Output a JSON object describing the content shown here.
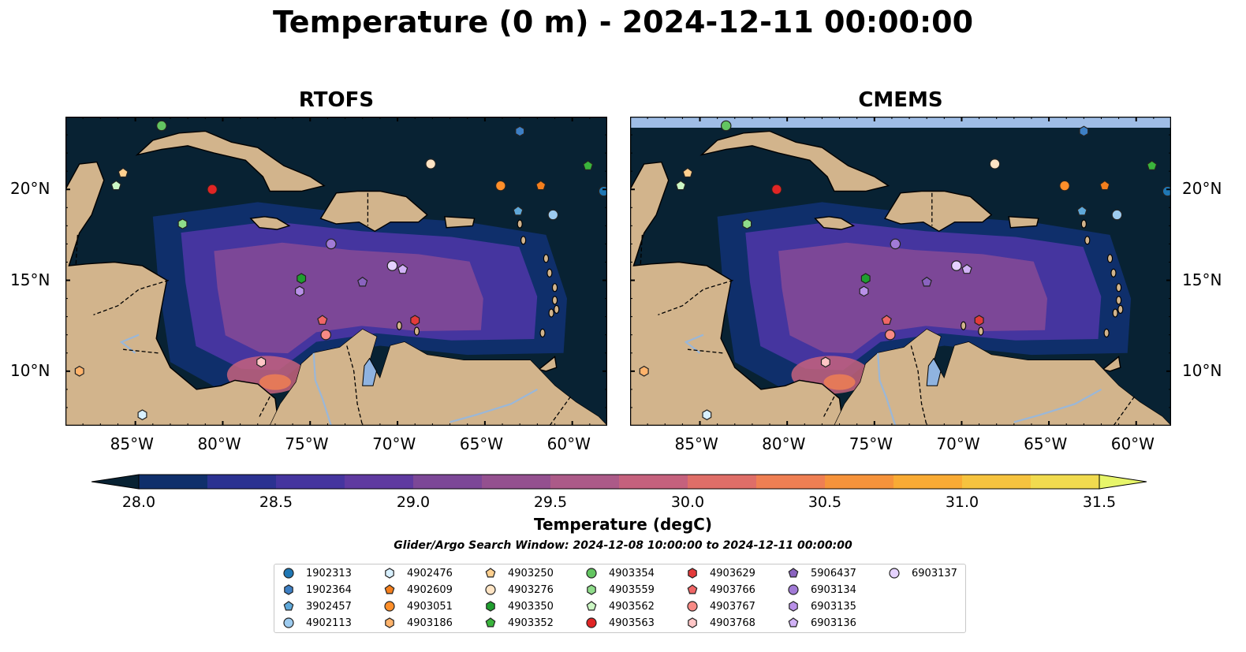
{
  "title": "Temperature (0 m) - 2024-12-11 00:00:00",
  "panels": [
    {
      "title": "RTOFS",
      "shelf_band": false
    },
    {
      "title": "CMEMS",
      "shelf_band": true
    }
  ],
  "map": {
    "lon_range": [
      -89,
      -58
    ],
    "lat_range": [
      7,
      24
    ],
    "lon_ticks": [
      "85°W",
      "80°W",
      "75°W",
      "70°W",
      "65°W",
      "60°W"
    ],
    "lat_ticks": [
      "20°N",
      "15°N",
      "10°N"
    ],
    "land_color": "#d2b48c",
    "ocean_deep_color": "#082233",
    "lake_color": "#8fb3e0",
    "river_color": "#9ab7d8"
  },
  "colorbar": {
    "title": "Temperature (degC)",
    "min": 28.0,
    "max": 31.5,
    "extend": "both",
    "ticks": [
      "28.0",
      "28.5",
      "29.0",
      "29.5",
      "30.0",
      "30.5",
      "31.0",
      "31.5"
    ],
    "colors": [
      "#082233",
      "#0f2f6b",
      "#2b3291",
      "#45359f",
      "#5f3aa0",
      "#7c4797",
      "#94508f",
      "#ac5a88",
      "#c5617d",
      "#df6e68",
      "#ef7f53",
      "#f6933b",
      "#f9ab34",
      "#f6c33f",
      "#f1db4f",
      "#e7f56a"
    ]
  },
  "search_window": "Glider/Argo Search Window: 2024-12-08 10:00:00 to 2024-12-11 00:00:00",
  "floats": [
    {
      "id": "1902313",
      "marker": "circle",
      "color": "#1f77b4",
      "lon": -58.2,
      "lat": 19.9
    },
    {
      "id": "1902364",
      "marker": "hexagon",
      "color": "#3d7fc4",
      "lon": -63.0,
      "lat": 23.2
    },
    {
      "id": "3902457",
      "marker": "pentagon",
      "color": "#5fa8d9",
      "lon": -63.1,
      "lat": 18.8
    },
    {
      "id": "4902113",
      "marker": "circle",
      "color": "#9dcbef",
      "lon": -61.1,
      "lat": 18.6
    },
    {
      "id": "4902476",
      "marker": "hexagon",
      "color": "#d8f0ff",
      "lon": -84.6,
      "lat": 7.6
    },
    {
      "id": "4902609",
      "marker": "pentagon",
      "color": "#f47f1d",
      "lon": -61.8,
      "lat": 20.2
    },
    {
      "id": "4903051",
      "marker": "circle",
      "color": "#ff8f2a",
      "lon": -64.1,
      "lat": 20.2
    },
    {
      "id": "4903186",
      "marker": "hexagon",
      "color": "#ffb36b",
      "lon": -88.2,
      "lat": 10.0
    },
    {
      "id": "4903250",
      "marker": "pentagon",
      "color": "#ffd08f",
      "lon": -85.7,
      "lat": 20.9
    },
    {
      "id": "4903276",
      "marker": "circle",
      "color": "#ffe4c4",
      "lon": -68.1,
      "lat": 21.4
    },
    {
      "id": "4903350",
      "marker": "hexagon",
      "color": "#1f9e2f",
      "lon": -75.5,
      "lat": 15.1
    },
    {
      "id": "4903352",
      "marker": "pentagon",
      "color": "#3ab43c",
      "lon": -59.1,
      "lat": 21.3
    },
    {
      "id": "4903354",
      "marker": "circle",
      "color": "#63c561",
      "lon": -83.5,
      "lat": 23.5
    },
    {
      "id": "4903559",
      "marker": "hexagon",
      "color": "#8fdc8a",
      "lon": -82.3,
      "lat": 18.1
    },
    {
      "id": "4903562",
      "marker": "pentagon",
      "color": "#ccf7c4",
      "lon": -86.1,
      "lat": 20.2
    },
    {
      "id": "4903563",
      "marker": "circle",
      "color": "#e02525",
      "lon": -80.6,
      "lat": 20.0
    },
    {
      "id": "4903629",
      "marker": "hexagon",
      "color": "#e33a3a",
      "lon": -69.0,
      "lat": 12.8
    },
    {
      "id": "4903766",
      "marker": "pentagon",
      "color": "#f06666",
      "lon": -74.3,
      "lat": 12.8
    },
    {
      "id": "4903767",
      "marker": "circle",
      "color": "#f78a85",
      "lon": -74.1,
      "lat": 12.0
    },
    {
      "id": "4903768",
      "marker": "hexagon",
      "color": "#ffc6c6",
      "lon": -77.8,
      "lat": 10.5
    },
    {
      "id": "5906437",
      "marker": "pentagon",
      "color": "#8a63bf",
      "lon": -72.0,
      "lat": 14.9
    },
    {
      "id": "6903134",
      "marker": "circle",
      "color": "#a17ad6",
      "lon": -73.8,
      "lat": 17.0
    },
    {
      "id": "6903135",
      "marker": "hexagon",
      "color": "#b990e8",
      "lon": -75.6,
      "lat": 14.4
    },
    {
      "id": "6903136",
      "marker": "pentagon",
      "color": "#d1b2f6",
      "lon": -69.7,
      "lat": 15.6
    },
    {
      "id": "6903137",
      "marker": "circle",
      "color": "#e5d2ff",
      "lon": -70.3,
      "lat": 15.8
    }
  ]
}
